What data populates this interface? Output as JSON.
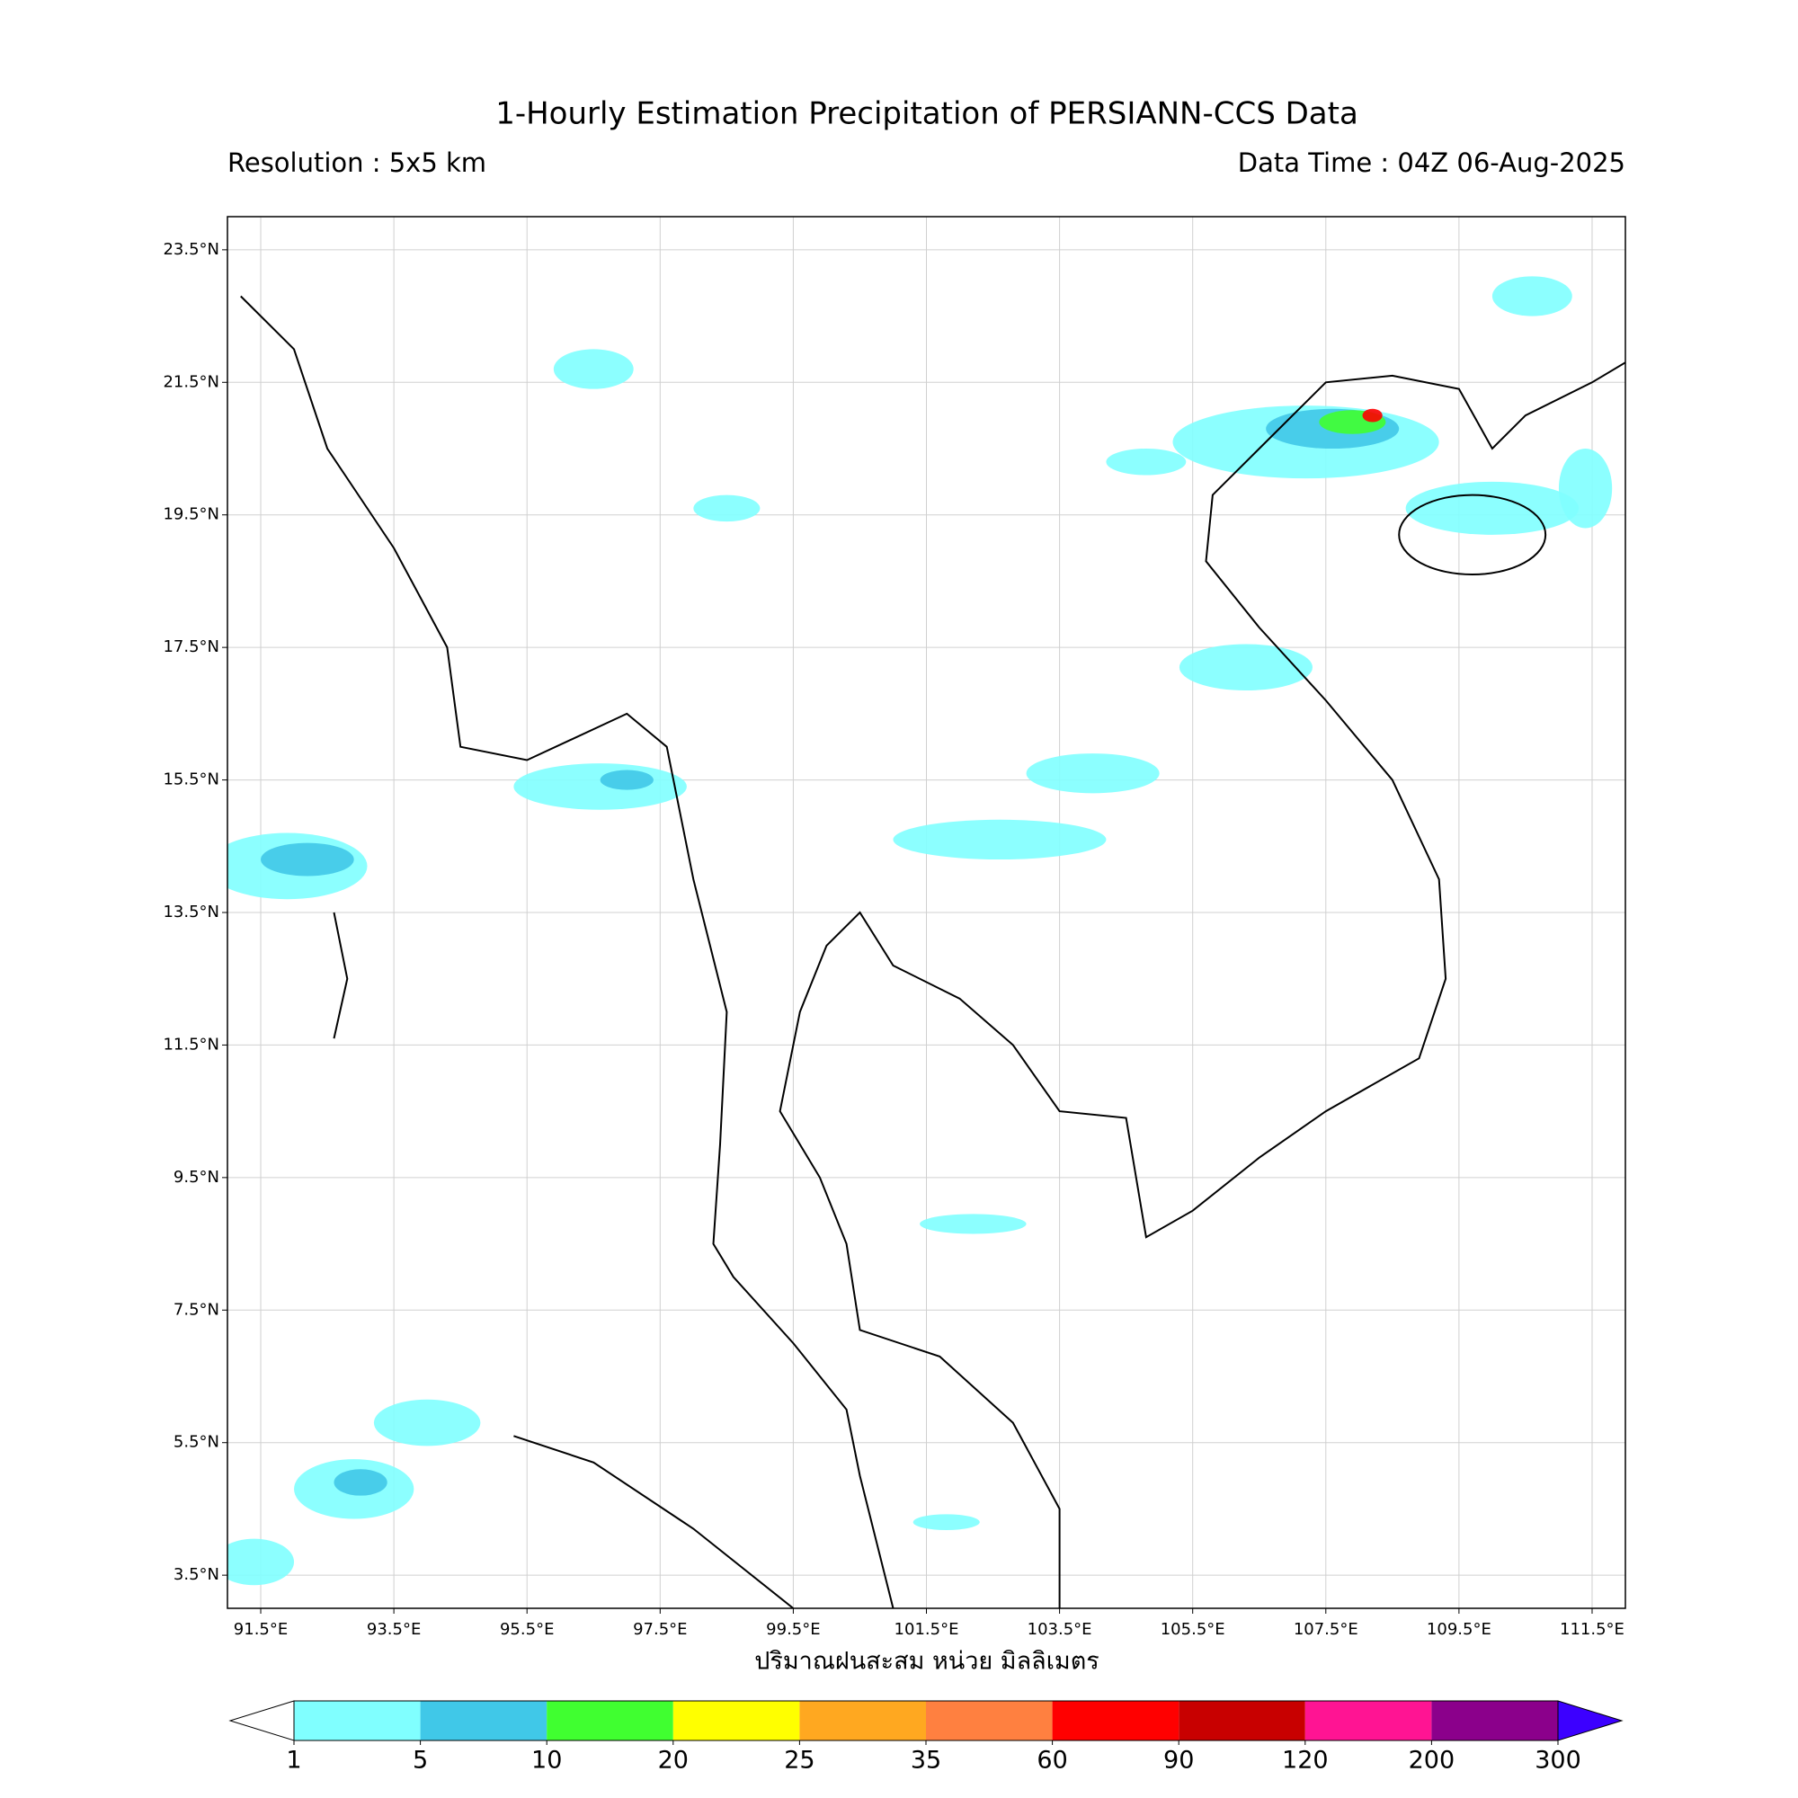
{
  "chart_data": {
    "type": "map",
    "title": "1-Hourly Estimation Precipitation of PERSIANN-CCS Data",
    "subtitle_left": "Resolution : 5x5 km",
    "subtitle_right": "Data Time : 04Z 06-Aug-2025",
    "xlabel": "ปริมาณฝนสะสม หน่วย มิลลิเมตร",
    "xlim": [
      91,
      112
    ],
    "ylim": [
      3,
      24
    ],
    "xticks": [
      {
        "value": 91.5,
        "label": "91.5°E"
      },
      {
        "value": 93.5,
        "label": "93.5°E"
      },
      {
        "value": 95.5,
        "label": "95.5°E"
      },
      {
        "value": 97.5,
        "label": "97.5°E"
      },
      {
        "value": 99.5,
        "label": "99.5°E"
      },
      {
        "value": 101.5,
        "label": "101.5°E"
      },
      {
        "value": 103.5,
        "label": "103.5°E"
      },
      {
        "value": 105.5,
        "label": "105.5°E"
      },
      {
        "value": 107.5,
        "label": "107.5°E"
      },
      {
        "value": 109.5,
        "label": "109.5°E"
      },
      {
        "value": 111.5,
        "label": "111.5°E"
      }
    ],
    "yticks": [
      {
        "value": 3.5,
        "label": "3.5°N"
      },
      {
        "value": 5.5,
        "label": "5.5°N"
      },
      {
        "value": 7.5,
        "label": "7.5°N"
      },
      {
        "value": 9.5,
        "label": "9.5°N"
      },
      {
        "value": 11.5,
        "label": "11.5°N"
      },
      {
        "value": 13.5,
        "label": "13.5°N"
      },
      {
        "value": 15.5,
        "label": "15.5°N"
      },
      {
        "value": 17.5,
        "label": "17.5°N"
      },
      {
        "value": 19.5,
        "label": "19.5°N"
      },
      {
        "value": 21.5,
        "label": "21.5°N"
      },
      {
        "value": 23.5,
        "label": "23.5°N"
      }
    ],
    "grid": true,
    "colorbar": {
      "bounds": [
        1,
        5,
        10,
        20,
        25,
        35,
        60,
        90,
        120,
        200,
        300
      ],
      "colors": [
        "#80ffff",
        "#40c8e8",
        "#40ff30",
        "#ffff00",
        "#ffa820",
        "#ff8040",
        "#ff0000",
        "#c80000",
        "#ff1493",
        "#8b008b"
      ],
      "extend_colors": [
        "#ffffff",
        "#3c00ff"
      ]
    }
  }
}
